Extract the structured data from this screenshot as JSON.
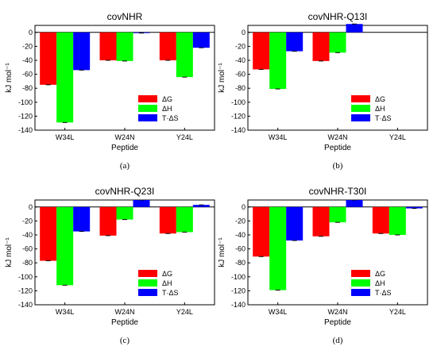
{
  "figure": {
    "colors": {
      "dG": "#ff0000",
      "dH": "#00ff00",
      "TdS": "#0000ff"
    }
  },
  "chart_data": [
    {
      "type": "bar",
      "title": "covNHR",
      "caption": "(a)",
      "xlabel": "Peptide",
      "ylabel": "kJ mol⁻¹",
      "ylim": [
        -140,
        10
      ],
      "yticks": [
        0,
        -20,
        -40,
        -60,
        -80,
        -100,
        -120,
        -140
      ],
      "categories": [
        "W34L",
        "W24N",
        "Y24L"
      ],
      "legend": "right",
      "series": [
        {
          "name": "ΔG",
          "values": [
            -75,
            -40,
            -40
          ]
        },
        {
          "name": "ΔH",
          "values": [
            -129,
            -41,
            -64
          ]
        },
        {
          "name": "T·ΔS",
          "values": [
            -54,
            -1,
            -22
          ]
        }
      ]
    },
    {
      "type": "bar",
      "title": "covNHR-Q13I",
      "caption": "(b)",
      "xlabel": "Peptide",
      "ylabel": "kJ mol⁻¹",
      "ylim": [
        -140,
        10
      ],
      "yticks": [
        0,
        -20,
        -40,
        -60,
        -80,
        -100,
        -120,
        -140
      ],
      "categories": [
        "W34L",
        "W24N",
        "Y24L"
      ],
      "legend": "right",
      "series": [
        {
          "name": "ΔG",
          "values": [
            -53,
            -41,
            null
          ]
        },
        {
          "name": "ΔH",
          "values": [
            -81,
            -29,
            null
          ]
        },
        {
          "name": "T·ΔS",
          "values": [
            -27,
            12,
            null
          ]
        }
      ]
    },
    {
      "type": "bar",
      "title": "covNHR-Q23I",
      "caption": "(c)",
      "xlabel": "Peptide",
      "ylabel": "kJ mol⁻¹",
      "ylim": [
        -140,
        10
      ],
      "yticks": [
        0,
        -20,
        -40,
        -60,
        -80,
        -100,
        -120,
        -140
      ],
      "categories": [
        "W34L",
        "W24N",
        "Y24L"
      ],
      "legend": "right",
      "series": [
        {
          "name": "ΔG",
          "values": [
            -77,
            -41,
            -38
          ]
        },
        {
          "name": "ΔH",
          "values": [
            -112,
            -18,
            -36
          ]
        },
        {
          "name": "T·ΔS",
          "values": [
            -35,
            10,
            3
          ]
        }
      ]
    },
    {
      "type": "bar",
      "title": "covNHR-T30I",
      "caption": "(d)",
      "xlabel": "Peptide",
      "ylabel": "kJ mol⁻¹",
      "ylim": [
        -140,
        10
      ],
      "yticks": [
        0,
        -20,
        -40,
        -60,
        -80,
        -100,
        -120,
        -140
      ],
      "categories": [
        "W34L",
        "W24N",
        "Y24L"
      ],
      "legend": "right",
      "series": [
        {
          "name": "ΔG",
          "values": [
            -71,
            -42,
            -38
          ]
        },
        {
          "name": "ΔH",
          "values": [
            -119,
            -22,
            -40
          ]
        },
        {
          "name": "T·ΔS",
          "values": [
            -48,
            10,
            -2
          ]
        }
      ]
    }
  ]
}
